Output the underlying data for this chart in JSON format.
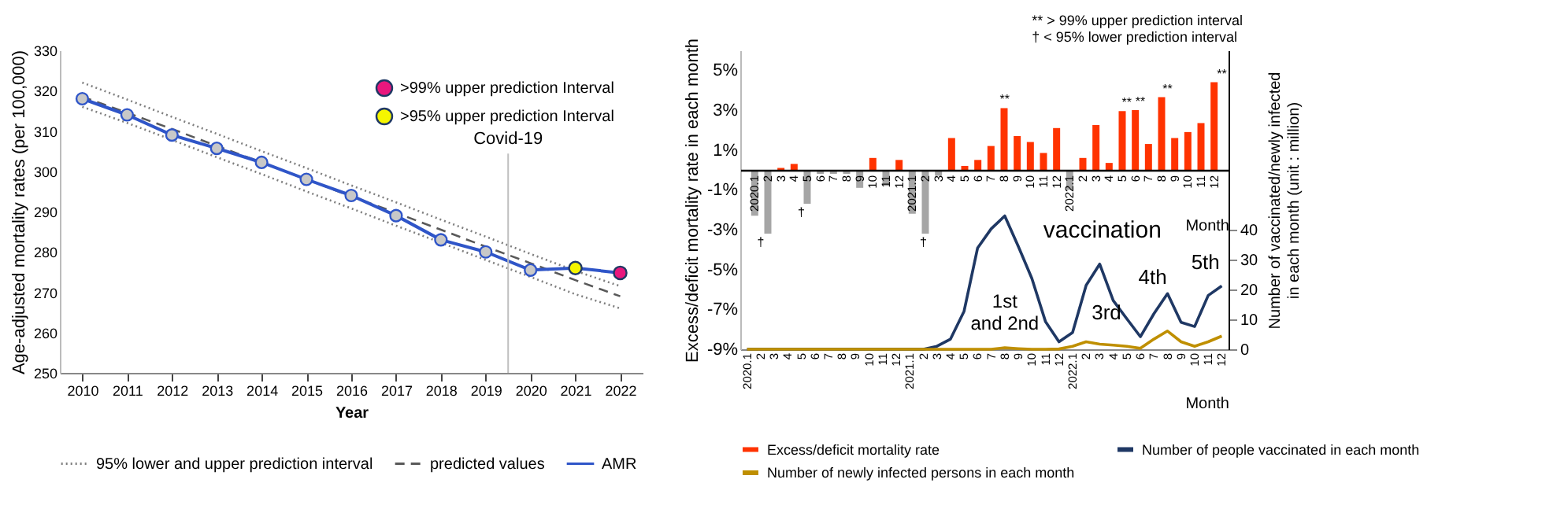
{
  "chart_data": [
    {
      "type": "line",
      "xlabel": "Year",
      "ylabel": "Age-adjusted mortality rates (per 100,000)",
      "x": [
        2010,
        2011,
        2012,
        2013,
        2014,
        2015,
        2016,
        2017,
        2018,
        2019,
        2020,
        2021,
        2022
      ],
      "xlim": [
        2009.5,
        2022.5
      ],
      "xticks": [
        2010,
        2011,
        2012,
        2013,
        2014,
        2015,
        2016,
        2017,
        2018,
        2019,
        2020,
        2021,
        2022
      ],
      "ylim": [
        250,
        330
      ],
      "yticks": [
        250,
        260,
        270,
        280,
        290,
        300,
        310,
        320,
        330
      ],
      "series": [
        {
          "name": "95% lower and upper prediction interval",
          "type": "line",
          "line_style": "dotted",
          "color": "#7f7f7f",
          "values": [
            322,
            317.8,
            313.5,
            309.3,
            305,
            300.8,
            296.5,
            292.3,
            288,
            283.8,
            279.5,
            275.3,
            271.5
          ]
        },
        {
          "type": "line",
          "line_style": "dotted",
          "color": "#7f7f7f",
          "values": [
            316,
            312,
            307.8,
            303.5,
            299.3,
            295,
            290.8,
            286.5,
            282.3,
            278,
            273.8,
            269.5,
            266
          ]
        },
        {
          "name": "predicted values",
          "type": "line",
          "line_style": "dashed",
          "color": "#595959",
          "values": [
            318.5,
            314.5,
            310.5,
            306.3,
            302.2,
            298,
            293.8,
            289.7,
            285.5,
            281.3,
            277.2,
            273,
            269
          ]
        },
        {
          "name": "AMR",
          "type": "line",
          "line_style": "solid",
          "marker": "circle",
          "color": "#2f55c8",
          "values": [
            318,
            314,
            309,
            305.7,
            302.2,
            298,
            294,
            289,
            283,
            280,
            275.5,
            276,
            274.8
          ],
          "colors": [
            "#c8c8c8",
            "#c8c8c8",
            "#c8c8c8",
            "#c8c8c8",
            "#c8c8c8",
            "#c8c8c8",
            "#c8c8c8",
            "#c8c8c8",
            "#c8c8c8",
            "#c8c8c8",
            "#c8c8c8",
            null,
            null
          ]
        },
        {
          "name": ">99% upper prediction Interval",
          "type": "scatter",
          "marker": "circle",
          "color": "#e8177d",
          "x": [
            2022
          ],
          "values": [
            274.8
          ]
        },
        {
          "name": ">95% upper prediction Interval",
          "type": "scatter",
          "marker": "circle",
          "color": "#f5f500",
          "x": [
            2021
          ],
          "values": [
            276
          ]
        }
      ],
      "ref_lines": [
        {
          "axis": "x",
          "value": 2019.5,
          "label": "Covid-19",
          "color": "#bfbfbf"
        }
      ],
      "legend": "bottom"
    },
    {
      "type": "bar",
      "xlabel": "Month",
      "ylabel": "Excess/deficit mortality rate in each month",
      "y2label": "Number of vaccinated/newly infected\nin each month    (unit : million)",
      "categories": [
        "2020.1",
        "2",
        "3",
        "4",
        "5",
        "6",
        "7",
        "8",
        "9",
        "10",
        "11",
        "12",
        "2021.1",
        "2",
        "3",
        "4",
        "5",
        "6",
        "7",
        "8",
        "9",
        "10",
        "11",
        "12",
        "2022.1",
        "2",
        "3",
        "4",
        "5",
        "6",
        "7",
        "8",
        "9",
        "10",
        "11",
        "12"
      ],
      "ylim": [
        -9,
        6
      ],
      "yticks": [
        {
          "value": -9,
          "label": "-9%"
        },
        {
          "value": -7,
          "label": "-7%"
        },
        {
          "value": -5,
          "label": "-5%"
        },
        {
          "value": -3,
          "label": "-3%"
        },
        {
          "value": -1,
          "label": "-1%"
        },
        {
          "value": 1,
          "label": "1%"
        },
        {
          "value": 3,
          "label": "3%"
        },
        {
          "value": 5,
          "label": "5%"
        }
      ],
      "y2lim": [
        0,
        100
      ],
      "y2ticks": [
        0,
        10,
        20,
        30,
        40
      ],
      "series": [
        {
          "name": "Excess/deficit mortality rate",
          "type": "bar",
          "color": "#ff3300",
          "values": [
            -2.3,
            -3.2,
            0.1,
            0.3,
            -1.7,
            -0.2,
            -0.2,
            -0.2,
            -0.9,
            0.6,
            -0.8,
            0.5,
            -2.2,
            -3.2,
            -0.3,
            1.6,
            0.2,
            0.5,
            1.2,
            3.1,
            1.7,
            1.4,
            0.85,
            2.1,
            -1.0,
            0.6,
            2.25,
            0.35,
            2.95,
            3.0,
            1.3,
            3.65,
            1.6,
            1.9,
            2.35,
            4.4
          ],
          "colors": [
            "#a6a6a6",
            "#a6a6a6",
            "#ff3300",
            "#ff3300",
            "#a6a6a6",
            "#a6a6a6",
            "#a6a6a6",
            "#a6a6a6",
            "#a6a6a6",
            "#ff3300",
            "#a6a6a6",
            "#ff3300",
            "#a6a6a6",
            "#a6a6a6",
            "#a6a6a6",
            "#ff3300",
            "#ff3300",
            "#ff3300",
            "#ff3300",
            "#ff3300",
            "#ff3300",
            "#ff3300",
            "#ff3300",
            "#ff3300",
            "#a6a6a6",
            "#ff3300",
            "#ff3300",
            "#ff3300",
            "#ff3300",
            "#ff3300",
            "#ff3300",
            "#ff3300",
            "#ff3300",
            "#ff3300",
            "#ff3300",
            "#ff3300"
          ],
          "value_labels": [
            null,
            "†",
            null,
            null,
            "†",
            null,
            null,
            null,
            null,
            null,
            null,
            null,
            null,
            "†",
            null,
            null,
            null,
            null,
            null,
            "**",
            null,
            null,
            null,
            null,
            null,
            null,
            null,
            null,
            "**",
            "**",
            null,
            "**",
            null,
            null,
            null,
            "**"
          ]
        },
        {
          "name": "Number of people vaccinated in each month",
          "type": "line",
          "axis": "y2",
          "color": "#1f3864",
          "values": [
            0,
            0,
            0,
            0,
            0,
            0,
            0,
            0,
            0,
            0,
            0,
            0,
            0,
            0,
            1.0,
            3.4,
            12.7,
            33.9,
            40.3,
            44.6,
            34.4,
            23.7,
            9.3,
            2.5,
            5.6,
            21.4,
            28.5,
            16.3,
            10.2,
            4.2,
            11.9,
            18.6,
            9.0,
            7.6,
            18.0,
            21.2
          ]
        },
        {
          "name": "Number of newly infected persons in each month",
          "type": "line",
          "axis": "y2",
          "color": "#bf8f00",
          "values": [
            0,
            0,
            0,
            0,
            0,
            0,
            0,
            0,
            0,
            0,
            0,
            0,
            0,
            0,
            0,
            0,
            0,
            0,
            0,
            0.5,
            0.2,
            0,
            0,
            0.1,
            1.0,
            2.5,
            1.7,
            1.4,
            1.0,
            0.3,
            3.4,
            6.1,
            2.5,
            1.0,
            2.5,
            4.4
          ]
        }
      ],
      "annotations": [
        "** > 99% upper prediction interval",
        "† < 95% lower prediction interval",
        "vaccination",
        "1st\nand 2nd",
        "3rd",
        "4th",
        "5th"
      ],
      "legend": "bottom"
    }
  ]
}
